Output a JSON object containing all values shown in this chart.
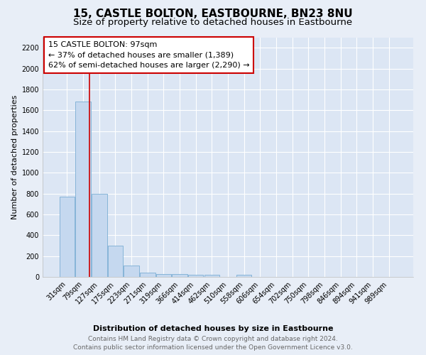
{
  "title": "15, CASTLE BOLTON, EASTBOURNE, BN23 8NU",
  "subtitle": "Size of property relative to detached houses in Eastbourne",
  "xlabel": "Distribution of detached houses by size in Eastbourne",
  "ylabel": "Number of detached properties",
  "footer_line1": "Contains HM Land Registry data © Crown copyright and database right 2024.",
  "footer_line2": "Contains public sector information licensed under the Open Government Licence v3.0.",
  "property_label": "15 CASTLE BOLTON: 97sqm",
  "annotation_line1": "← 37% of detached houses are smaller (1,389)",
  "annotation_line2": "62% of semi-detached houses are larger (2,290) →",
  "categories": [
    "31sqm",
    "79sqm",
    "127sqm",
    "175sqm",
    "223sqm",
    "271sqm",
    "319sqm",
    "366sqm",
    "414sqm",
    "462sqm",
    "510sqm",
    "558sqm",
    "606sqm",
    "654sqm",
    "702sqm",
    "750sqm",
    "798sqm",
    "846sqm",
    "894sqm",
    "941sqm",
    "989sqm"
  ],
  "values": [
    770,
    1680,
    800,
    300,
    110,
    40,
    28,
    25,
    20,
    20,
    0,
    22,
    0,
    0,
    0,
    0,
    0,
    0,
    0,
    0,
    0
  ],
  "bar_color": "#c5d8ef",
  "bar_edge_color": "#7aadd4",
  "ylim": [
    0,
    2300
  ],
  "yticks": [
    0,
    200,
    400,
    600,
    800,
    1000,
    1200,
    1400,
    1600,
    1800,
    2000,
    2200
  ],
  "background_color": "#e8eef7",
  "plot_background": "#dce6f4",
  "grid_color": "#ffffff",
  "annotation_box_color": "#ffffff",
  "annotation_box_edge": "#cc0000",
  "title_fontsize": 11,
  "subtitle_fontsize": 9.5,
  "axis_label_fontsize": 8,
  "tick_fontsize": 7,
  "footer_fontsize": 6.5,
  "annotation_fontsize": 8
}
